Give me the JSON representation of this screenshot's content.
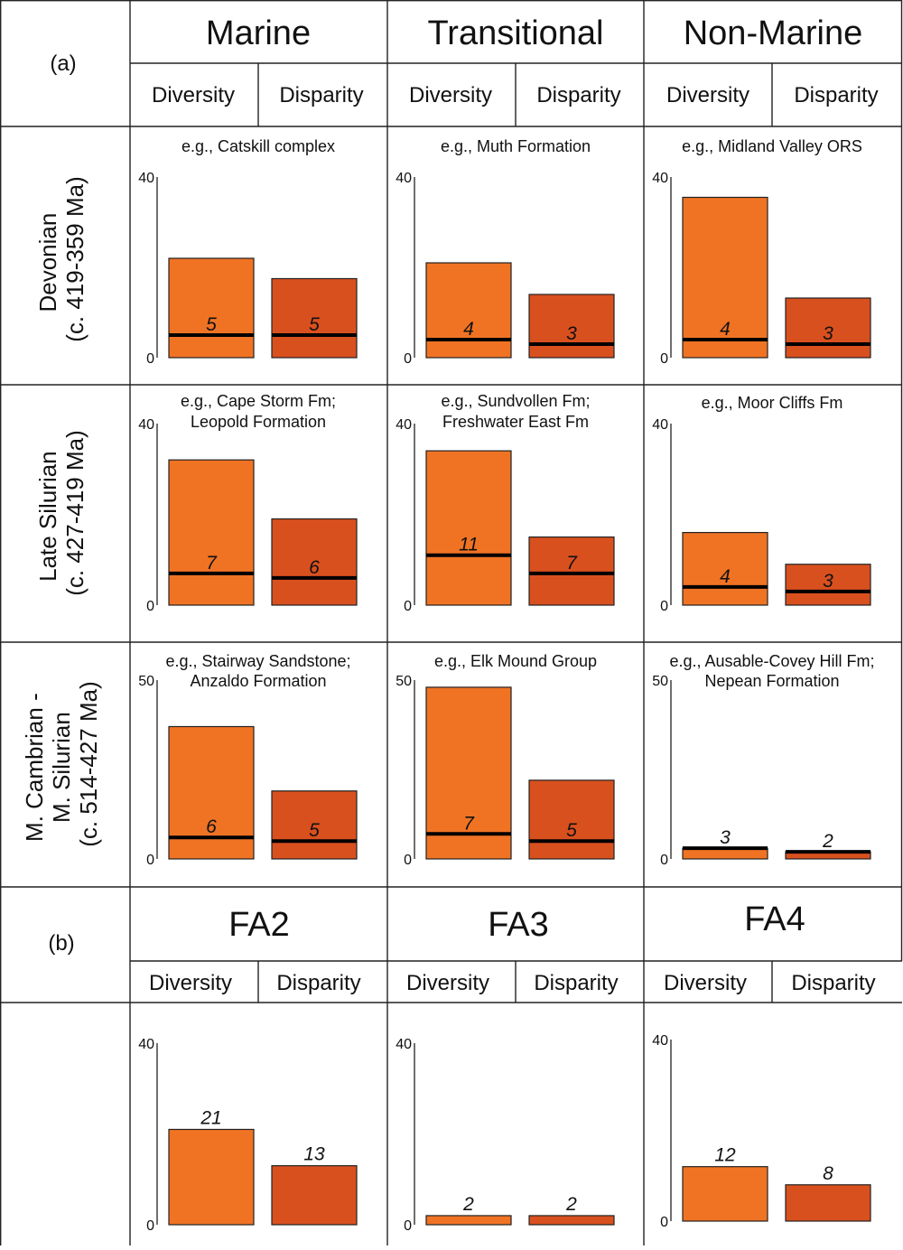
{
  "colors": {
    "diversity": "#f07324",
    "disparity": "#d9501f",
    "line": "#000000"
  },
  "section_a": {
    "label": "(a)",
    "columns": [
      "Marine",
      "Transitional",
      "Non-Marine"
    ],
    "subheaders": [
      "Diversity",
      "Disparity"
    ],
    "rows": [
      {
        "label_line1": "Devonian",
        "label_line2": "(c. 419-359 Ma)"
      },
      {
        "label_line1": "Late Silurian",
        "label_line2": "(c. 427-419 Ma)"
      },
      {
        "label_line1": "M. Cambrian -",
        "label_line2": "M. Silurian",
        "label_line3": "(c. 514-427 Ma)"
      }
    ]
  },
  "section_b": {
    "label": "(b)",
    "columns": [
      "FA2",
      "FA3",
      "FA4"
    ],
    "subheaders": [
      "Diversity",
      "Disparity"
    ]
  },
  "chart_data": [
    {
      "type": "bar",
      "panel": "Devonian / Marine",
      "example_lines": [
        "e.g., Catskill complex"
      ],
      "categories": [
        "Diversity",
        "Disparity"
      ],
      "values": [
        22,
        17.5
      ],
      "line_values": [
        5,
        5
      ],
      "line_labels": [
        "5",
        "5"
      ],
      "ylim": [
        0,
        40
      ],
      "yticks": [
        "0",
        "40"
      ]
    },
    {
      "type": "bar",
      "panel": "Devonian / Transitional",
      "example_lines": [
        "e.g., Muth Formation"
      ],
      "categories": [
        "Diversity",
        "Disparity"
      ],
      "values": [
        21,
        14
      ],
      "line_values": [
        4,
        3
      ],
      "line_labels": [
        "4",
        "3"
      ],
      "ylim": [
        0,
        40
      ],
      "yticks": [
        "0",
        "40"
      ]
    },
    {
      "type": "bar",
      "panel": "Devonian / Non-Marine",
      "example_lines": [
        "e.g., Midland Valley ORS"
      ],
      "categories": [
        "Diversity",
        "Disparity"
      ],
      "values": [
        35.5,
        13.2
      ],
      "line_values": [
        4,
        3
      ],
      "line_labels": [
        "4",
        "3"
      ],
      "ylim": [
        0,
        40
      ],
      "yticks": [
        "0",
        "40"
      ]
    },
    {
      "type": "bar",
      "panel": "Late Silurian / Marine",
      "example_lines": [
        "e.g., Cape Storm Fm;",
        "Leopold Formation"
      ],
      "categories": [
        "Diversity",
        "Disparity"
      ],
      "values": [
        32,
        19
      ],
      "line_values": [
        7,
        6
      ],
      "line_labels": [
        "7",
        "6"
      ],
      "ylim": [
        0,
        40
      ],
      "yticks": [
        "0",
        "40"
      ]
    },
    {
      "type": "bar",
      "panel": "Late Silurian / Transitional",
      "example_lines": [
        "e.g., Sundvollen Fm;",
        "Freshwater East Fm"
      ],
      "categories": [
        "Diversity",
        "Disparity"
      ],
      "values": [
        34,
        15
      ],
      "line_values": [
        11,
        7
      ],
      "line_labels": [
        "11",
        "7"
      ],
      "ylim": [
        0,
        40
      ],
      "yticks": [
        "0",
        "40"
      ]
    },
    {
      "type": "bar",
      "panel": "Late Silurian / Non-Marine",
      "example_lines": [
        "e.g., Moor Cliffs Fm"
      ],
      "categories": [
        "Diversity",
        "Disparity"
      ],
      "values": [
        16,
        9
      ],
      "line_values": [
        4,
        3
      ],
      "line_labels": [
        "4",
        "3"
      ],
      "ylim": [
        0,
        40
      ],
      "yticks": [
        "0",
        "40"
      ]
    },
    {
      "type": "bar",
      "panel": "M. Cambrian - M. Silurian / Marine",
      "example_lines": [
        "e.g., Stairway Sandstone;",
        "Anzaldo Formation"
      ],
      "categories": [
        "Diversity",
        "Disparity"
      ],
      "values": [
        37,
        19
      ],
      "line_values": [
        6,
        5
      ],
      "line_labels": [
        "6",
        "5"
      ],
      "ylim": [
        0,
        50
      ],
      "yticks": [
        "0",
        "50"
      ]
    },
    {
      "type": "bar",
      "panel": "M. Cambrian - M. Silurian / Transitional",
      "example_lines": [
        "e.g., Elk Mound Group"
      ],
      "categories": [
        "Diversity",
        "Disparity"
      ],
      "values": [
        48,
        22
      ],
      "line_values": [
        7,
        5
      ],
      "line_labels": [
        "7",
        "5"
      ],
      "ylim": [
        0,
        50
      ],
      "yticks": [
        "0",
        "50"
      ]
    },
    {
      "type": "bar",
      "panel": "M. Cambrian - M. Silurian / Non-Marine",
      "example_lines": [
        "e.g., Ausable-Covey Hill Fm;",
        "Nepean Formation"
      ],
      "categories": [
        "Diversity",
        "Disparity"
      ],
      "values": [
        3,
        2
      ],
      "line_values": [
        3,
        2
      ],
      "line_labels": [
        "3",
        "2"
      ],
      "ylim": [
        0,
        50
      ],
      "yticks": [
        "0",
        "50"
      ]
    },
    {
      "type": "bar",
      "panel": "FA2",
      "example_lines": [],
      "categories": [
        "Diversity",
        "Disparity"
      ],
      "values": [
        21,
        13
      ],
      "value_labels": [
        "21",
        "13"
      ],
      "ylim": [
        0,
        40
      ],
      "yticks": [
        "0",
        "40"
      ]
    },
    {
      "type": "bar",
      "panel": "FA3",
      "example_lines": [],
      "categories": [
        "Diversity",
        "Disparity"
      ],
      "values": [
        2,
        2
      ],
      "value_labels": [
        "2",
        "2"
      ],
      "ylim": [
        0,
        40
      ],
      "yticks": [
        "0",
        "40"
      ]
    },
    {
      "type": "bar",
      "panel": "FA4",
      "example_lines": [],
      "categories": [
        "Diversity",
        "Disparity"
      ],
      "values": [
        12,
        8
      ],
      "value_labels": [
        "12",
        "8"
      ],
      "ylim": [
        0,
        40
      ],
      "yticks": [
        "0",
        "40"
      ]
    }
  ]
}
